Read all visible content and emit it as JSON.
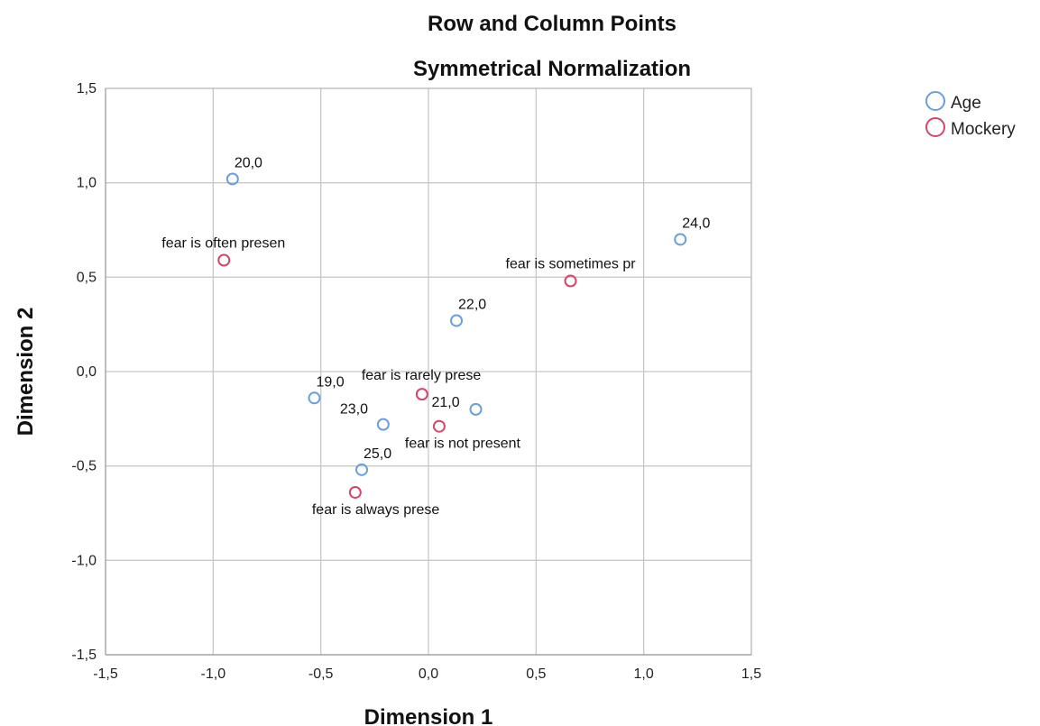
{
  "chart_data": {
    "type": "scatter",
    "title": "Row and Column Points",
    "subtitle": "Symmetrical Normalization",
    "xlabel": "Dimension 1",
    "ylabel": "Dimension 2",
    "xlim": [
      -1.5,
      1.5
    ],
    "ylim": [
      -1.5,
      1.5
    ],
    "xticks": [
      -1.5,
      -1.0,
      -0.5,
      0.0,
      0.5,
      1.0,
      1.5
    ],
    "yticks": [
      -1.5,
      -1.0,
      -0.5,
      0.0,
      0.5,
      1.0,
      1.5
    ],
    "xtick_labels": [
      "-1,5",
      "-1,0",
      "-0,5",
      "0,0",
      "0,5",
      "1,0",
      "1,5"
    ],
    "ytick_labels": [
      "-1,5",
      "-1,0",
      "-0,5",
      "0,0",
      "0,5",
      "1,0",
      "1,5"
    ],
    "grid": true,
    "legend_position": "top-right",
    "series": [
      {
        "name": "Age",
        "color": "#6a9fdd",
        "points": [
          {
            "label": "20,0",
            "x": -0.91,
            "y": 1.02
          },
          {
            "label": "24,0",
            "x": 1.17,
            "y": 0.7
          },
          {
            "label": "22,0",
            "x": 0.13,
            "y": 0.27
          },
          {
            "label": "19,0",
            "x": -0.53,
            "y": -0.14
          },
          {
            "label": "21,0",
            "x": 0.22,
            "y": -0.2
          },
          {
            "label": "23,0",
            "x": -0.21,
            "y": -0.28
          },
          {
            "label": "25,0",
            "x": -0.31,
            "y": -0.52
          }
        ]
      },
      {
        "name": "Mockery",
        "color": "#d6456a",
        "points": [
          {
            "label": "fear is often presen",
            "x": -0.95,
            "y": 0.59
          },
          {
            "label": "fear is sometimes pr",
            "x": 0.66,
            "y": 0.48
          },
          {
            "label": "fear is rarely prese",
            "x": -0.03,
            "y": -0.12
          },
          {
            "label": "fear is not present",
            "x": 0.05,
            "y": -0.29
          },
          {
            "label": "fear is always prese",
            "x": -0.34,
            "y": -0.64
          }
        ]
      }
    ]
  }
}
